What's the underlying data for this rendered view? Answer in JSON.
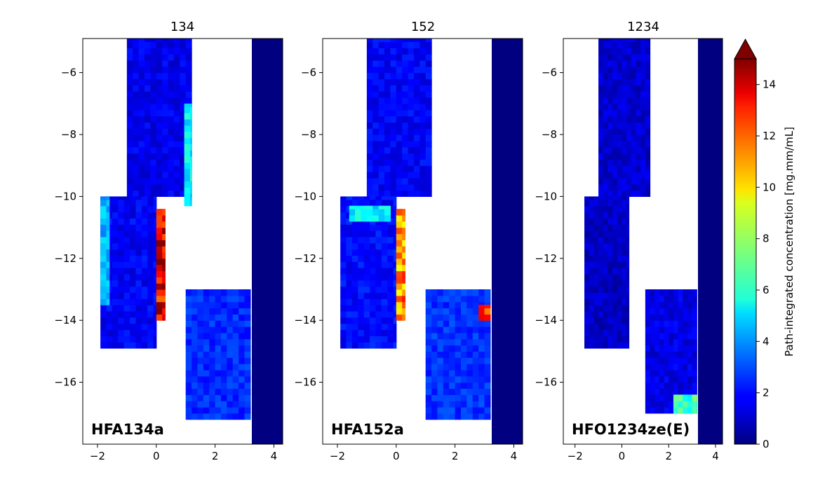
{
  "chart_data": [
    {
      "type": "heatmap",
      "title": "134",
      "annotation": "HFA134a",
      "xlim": [
        -2.5,
        4.3
      ],
      "ylim": [
        -18,
        -4.9
      ],
      "xticks": [
        -2,
        0,
        2,
        4
      ],
      "yticks": [
        -16,
        -14,
        -12,
        -10,
        -8,
        -6
      ],
      "regions": [
        {
          "region": "upper-channel",
          "x": [
            -1.0,
            1.2
          ],
          "y": [
            -10,
            -4.9
          ],
          "typical_value": 1.6
        },
        {
          "region": "right-wall-streak",
          "x": [
            0.95,
            1.2
          ],
          "y": [
            -10.3,
            -7.0
          ],
          "typical_value": 5.5
        },
        {
          "region": "left-lower-chamber",
          "x": [
            -1.9,
            0.0
          ],
          "y": [
            -14.9,
            -10.0
          ],
          "typical_value": 1.8
        },
        {
          "region": "left-edge-cyan",
          "x": [
            -1.9,
            -1.6
          ],
          "y": [
            -13.5,
            -10.0
          ],
          "typical_value": 4.5
        },
        {
          "region": "central-hot-column",
          "x": [
            0.0,
            0.3
          ],
          "y": [
            -14.0,
            -10.4
          ],
          "typical_value": 14.0
        },
        {
          "region": "lower-right-fan",
          "x": [
            1.0,
            3.2
          ],
          "y": [
            -17.2,
            -13.0
          ],
          "typical_value": 2.5
        },
        {
          "region": "right-boundary",
          "x": [
            3.25,
            4.3
          ],
          "y": [
            -18,
            -4.9
          ],
          "typical_value": 0
        }
      ]
    },
    {
      "type": "heatmap",
      "title": "152",
      "annotation": "HFA152a",
      "xlim": [
        -2.5,
        4.3
      ],
      "ylim": [
        -18,
        -4.9
      ],
      "xticks": [
        -2,
        0,
        2,
        4
      ],
      "yticks": [
        -16,
        -14,
        -12,
        -10,
        -8,
        -6
      ],
      "regions": [
        {
          "region": "upper-channel",
          "x": [
            -1.0,
            1.2
          ],
          "y": [
            -10,
            -4.9
          ],
          "typical_value": 1.8
        },
        {
          "region": "left-lower-chamber",
          "x": [
            -1.9,
            0.0
          ],
          "y": [
            -14.9,
            -10.0
          ],
          "typical_value": 2.0
        },
        {
          "region": "left-top-cyan",
          "x": [
            -1.6,
            -0.2
          ],
          "y": [
            -10.8,
            -10.3
          ],
          "typical_value": 5.5
        },
        {
          "region": "central-hot-column",
          "x": [
            0.0,
            0.3
          ],
          "y": [
            -14.0,
            -10.4
          ],
          "typical_value": 11.0
        },
        {
          "region": "lower-right-fan",
          "x": [
            1.0,
            3.2
          ],
          "y": [
            -17.2,
            -13.0
          ],
          "typical_value": 2.6
        },
        {
          "region": "right-edge-hotspots",
          "x": [
            2.8,
            3.2
          ],
          "y": [
            -14.0,
            -13.5
          ],
          "typical_value": 12.0
        },
        {
          "region": "right-boundary",
          "x": [
            3.25,
            4.3
          ],
          "y": [
            -18,
            -4.9
          ],
          "typical_value": 0
        }
      ]
    },
    {
      "type": "heatmap",
      "title": "1234",
      "annotation": "HFO1234ze(E)",
      "xlim": [
        -2.5,
        4.3
      ],
      "ylim": [
        -18,
        -4.9
      ],
      "xticks": [
        -2,
        0,
        2,
        4
      ],
      "yticks": [
        -16,
        -14,
        -12,
        -10,
        -8,
        -6
      ],
      "regions": [
        {
          "region": "upper-channel",
          "x": [
            -1.0,
            1.2
          ],
          "y": [
            -10,
            -4.9
          ],
          "typical_value": 1.2
        },
        {
          "region": "left-lower-chamber",
          "x": [
            -1.6,
            0.3
          ],
          "y": [
            -14.9,
            -10.0
          ],
          "typical_value": 1.0
        },
        {
          "region": "lower-right-fan",
          "x": [
            1.0,
            3.2
          ],
          "y": [
            -17.0,
            -13.0
          ],
          "typical_value": 1.5
        },
        {
          "region": "bottom-right-bright",
          "x": [
            2.2,
            3.2
          ],
          "y": [
            -17.0,
            -16.4
          ],
          "typical_value": 6.5
        },
        {
          "region": "right-boundary",
          "x": [
            3.25,
            4.3
          ],
          "y": [
            -18,
            -4.9
          ],
          "typical_value": 0
        }
      ]
    }
  ],
  "colorbar": {
    "label": "Path-integrated concentration [mg.mm/mL]",
    "colormap": "jet",
    "vmin": 0,
    "vmax": 15,
    "ticks": [
      0,
      2,
      4,
      6,
      8,
      10,
      12,
      14
    ],
    "extend": "max"
  }
}
